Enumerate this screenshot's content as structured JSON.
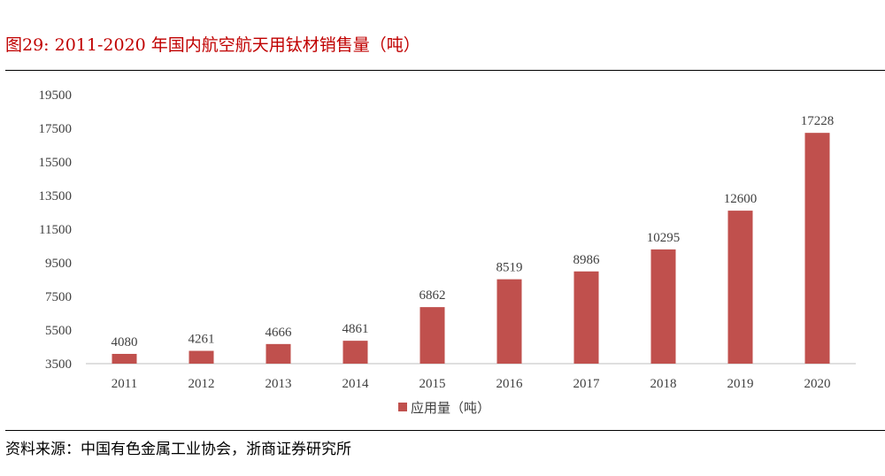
{
  "title": "图29:  2011-2020 年国内航空航天用钛材销售量（吨）",
  "source": "资料来源：中国有色金属工业协会，浙商证券研究所",
  "chart_data": {
    "type": "bar",
    "categories": [
      "2011",
      "2012",
      "2013",
      "2014",
      "2015",
      "2016",
      "2017",
      "2018",
      "2019",
      "2020"
    ],
    "series": [
      {
        "name": "应用量（吨）",
        "values": [
          4080,
          4261,
          4666,
          4861,
          6862,
          8519,
          8986,
          10295,
          12600,
          17228
        ],
        "color": "#c0504d"
      }
    ],
    "yticks": [
      3500,
      5500,
      7500,
      9500,
      11500,
      13500,
      15500,
      17500,
      19500
    ],
    "ylim": [
      3500,
      19500
    ],
    "grid": false,
    "legend": "bottom"
  }
}
